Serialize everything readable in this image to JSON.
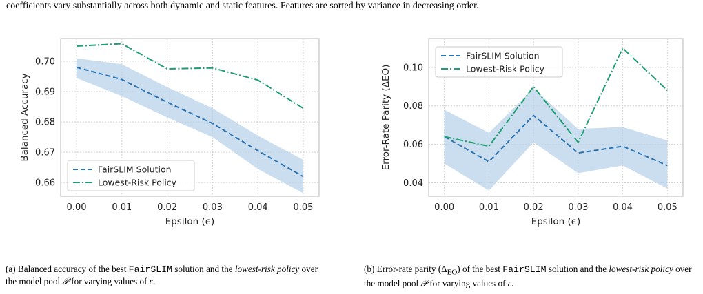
{
  "top_caption": "coefficients vary substantially across both dynamic and static features. Features are sorted by variance in decreasing order.",
  "colors": {
    "fairslim": "#2b72b0",
    "lowest_risk": "#1f9e72",
    "band": "#b8d3e9",
    "grid": "#cfcfcf",
    "frame": "#c4c4c4"
  },
  "captions": {
    "a": {
      "p1": "(a) Balanced accuracy of the best ",
      "code": "FairSLIM",
      "p2": " solution and the ",
      "em1": "lowest-risk policy",
      "p3": " over the model pool ",
      "sym": "𝒫",
      "p4": " for varying values of ",
      "eps": "ε",
      "p5": "."
    },
    "b": {
      "p1": "(b) Error-rate parity (Δ",
      "sub": "EO",
      "p2": ") of the best ",
      "code": "FairSLIM",
      "p3": " solution and the ",
      "em1": "lowest-risk policy",
      "p4": " over the model pool ",
      "sym": "𝒫",
      "p5": " for varying values of ",
      "eps": "ε",
      "p6": "."
    }
  },
  "chart_data": [
    {
      "type": "line",
      "xlabel": "Epsilon (ϵ)",
      "ylabel": "Balanced Accuracy",
      "x": [
        0.0,
        0.01,
        0.02,
        0.03,
        0.04,
        0.05
      ],
      "x_tick_labels": [
        "0.00",
        "0.01",
        "0.02",
        "0.03",
        "0.04",
        "0.05"
      ],
      "y_ticks": [
        0.66,
        0.67,
        0.68,
        0.69,
        0.7
      ],
      "y_tick_labels": [
        "0.66",
        "0.67",
        "0.68",
        "0.69",
        "0.70"
      ],
      "xlim": [
        -0.0035,
        0.0535
      ],
      "ylim": [
        0.6555,
        0.7075
      ],
      "grid": true,
      "legend_position": "bottom-left",
      "series": [
        {
          "name": "FairSLIM Solution",
          "style": "dashed",
          "color": "#2b72b0",
          "values": [
            0.698,
            0.694,
            0.6865,
            0.6795,
            0.6705,
            0.662
          ],
          "band_lower": [
            0.6945,
            0.6885,
            0.6815,
            0.675,
            0.6645,
            0.6565
          ],
          "band_upper": [
            0.701,
            0.699,
            0.6915,
            0.6845,
            0.6755,
            0.6675
          ]
        },
        {
          "name": "Lowest-Risk Policy",
          "style": "dashdot",
          "color": "#1f9e72",
          "values": [
            0.705,
            0.7058,
            0.6975,
            0.6978,
            0.6938,
            0.6845
          ]
        }
      ]
    },
    {
      "type": "line",
      "xlabel": "Epsilon (ϵ)",
      "ylabel": "Error-Rate Parity (ΔEO)",
      "x": [
        0.0,
        0.01,
        0.02,
        0.03,
        0.04,
        0.05
      ],
      "x_tick_labels": [
        "0.00",
        "0.01",
        "0.02",
        "0.03",
        "0.04",
        "0.05"
      ],
      "y_ticks": [
        0.04,
        0.06,
        0.08,
        0.1
      ],
      "y_tick_labels": [
        "0.04",
        "0.06",
        "0.08",
        "0.10"
      ],
      "xlim": [
        -0.0035,
        0.0535
      ],
      "ylim": [
        0.033,
        0.115
      ],
      "grid": true,
      "legend_position": "top-left",
      "series": [
        {
          "name": "FairSLIM Solution",
          "style": "dashed",
          "color": "#2b72b0",
          "values": [
            0.064,
            0.051,
            0.075,
            0.0555,
            0.059,
            0.049
          ],
          "band_lower": [
            0.05,
            0.036,
            0.061,
            0.045,
            0.049,
            0.037
          ],
          "band_upper": [
            0.078,
            0.066,
            0.089,
            0.068,
            0.069,
            0.062
          ]
        },
        {
          "name": "Lowest-Risk Policy",
          "style": "dashdot",
          "color": "#1f9e72",
          "values": [
            0.064,
            0.059,
            0.09,
            0.061,
            0.11,
            0.088
          ]
        }
      ]
    }
  ]
}
